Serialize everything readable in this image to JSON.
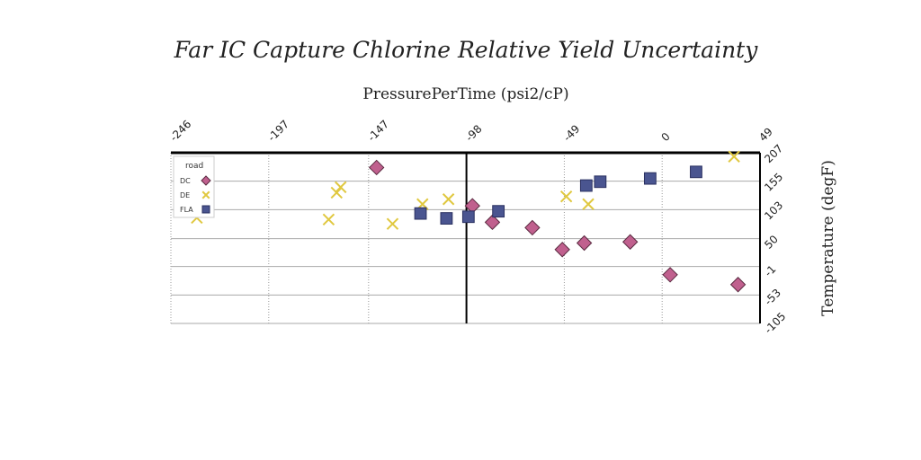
{
  "chart_data": {
    "type": "scatter",
    "title": "Far IC Capture Chlorine Relative Yield Uncertainty",
    "xlabel": "PressurePerTime (psi2/cP)",
    "ylabel": "Temperature (degF)",
    "x_axis_position": "top",
    "y_axis_position": "right",
    "xlim": [
      -246,
      49
    ],
    "ylim": [
      -105,
      207
    ],
    "x_ticks": [
      "-246",
      "-197",
      "-147",
      "-98",
      "-49",
      "0",
      "49"
    ],
    "y_ticks": [
      "207",
      "155",
      "103",
      "50",
      "-1",
      "-53",
      "-105"
    ],
    "grid": "horizontal solid, vertical dotted",
    "legend": {
      "title": "road",
      "placement": "top-left"
    },
    "series": [
      {
        "name": "DC",
        "marker": "diamond",
        "color": "#c0608e",
        "points": [
          [
            -143,
            180
          ],
          [
            -95,
            110
          ],
          [
            -85,
            80
          ],
          [
            -65,
            70
          ],
          [
            -50,
            30
          ],
          [
            -39,
            42
          ],
          [
            -16,
            44
          ],
          [
            4,
            -16
          ],
          [
            38,
            -34
          ]
        ]
      },
      {
        "name": "DE",
        "marker": "x",
        "color": "#e0c840",
        "points": [
          [
            -233,
            88
          ],
          [
            -167,
            85
          ],
          [
            -163,
            134
          ],
          [
            -161,
            144
          ],
          [
            -135,
            77
          ],
          [
            -120,
            113
          ],
          [
            -107,
            122
          ],
          [
            -48,
            127
          ],
          [
            -37,
            113
          ],
          [
            36,
            200
          ]
        ]
      },
      {
        "name": "FLA",
        "marker": "square",
        "color": "#4a5590",
        "points": [
          [
            -121,
            96
          ],
          [
            -108,
            87
          ],
          [
            -97,
            90
          ],
          [
            -82,
            100
          ],
          [
            -38,
            147
          ],
          [
            -31,
            154
          ],
          [
            -6,
            160
          ],
          [
            17,
            172
          ]
        ]
      }
    ]
  }
}
